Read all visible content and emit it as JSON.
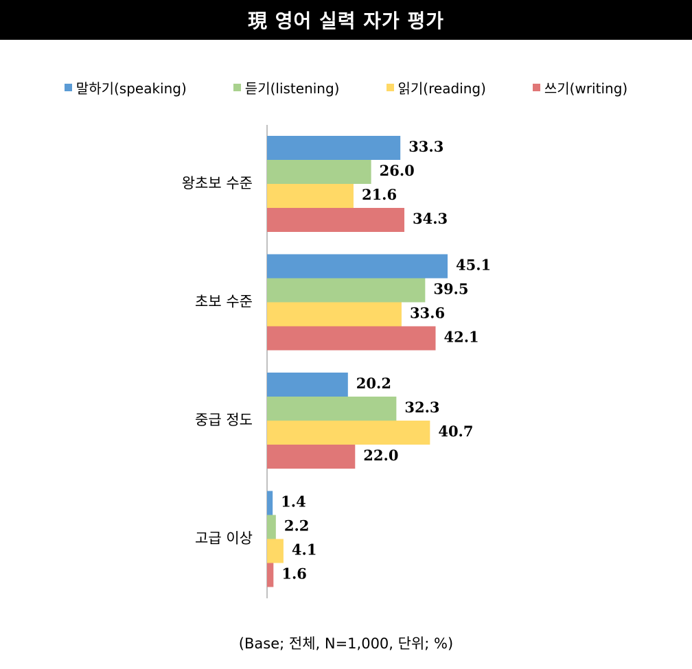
{
  "chart_data": {
    "type": "bar",
    "orientation": "horizontal",
    "title": "現 영어 실력 자가 평가",
    "categories": [
      "왕초보 수준",
      "초보 수준",
      "중급 정도",
      "고급 이상"
    ],
    "series": [
      {
        "name": "말하기(speaking)",
        "color": "#5b9bd5",
        "values": [
          33.3,
          45.1,
          20.2,
          1.4
        ]
      },
      {
        "name": "듣기(listening)",
        "color": "#a9d18e",
        "values": [
          26.0,
          39.5,
          32.3,
          2.2
        ]
      },
      {
        "name": "읽기(reading)",
        "color": "#ffd966",
        "values": [
          21.6,
          33.6,
          40.7,
          4.1
        ]
      },
      {
        "name": "쓰기(writing)",
        "color": "#e07777",
        "values": [
          34.3,
          42.1,
          22.0,
          1.6
        ]
      }
    ],
    "xlim": [
      0,
      60
    ],
    "grid": false,
    "legend_position": "top",
    "data_labels": true,
    "footnote": "(Base; 전체, N=1,000, 단위; %)"
  }
}
